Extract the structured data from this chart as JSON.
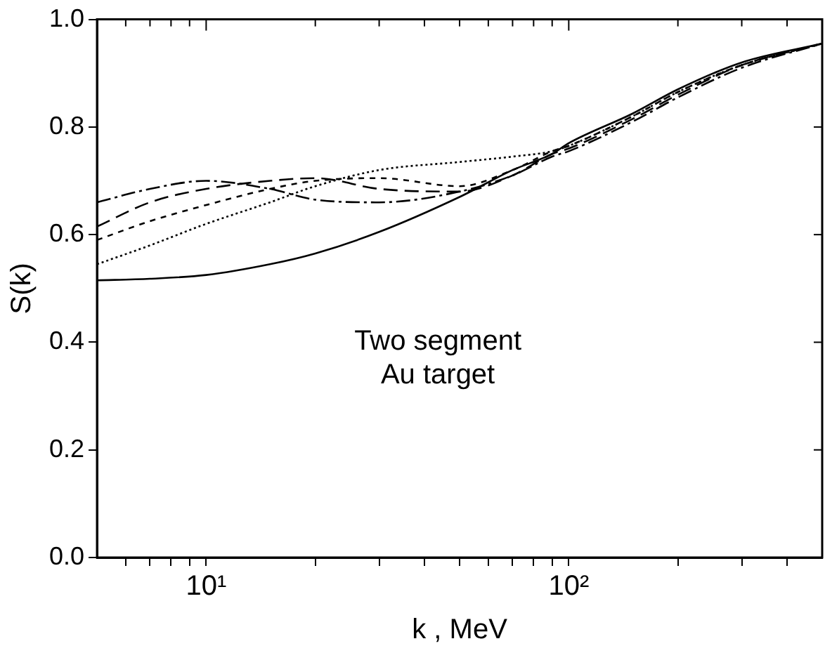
{
  "chart_data": {
    "type": "line",
    "xlabel": "k , MeV",
    "ylabel": "S(k)",
    "log": "x",
    "x": [
      5,
      7,
      10,
      15,
      20,
      30,
      50,
      70,
      90,
      100,
      150,
      200,
      300,
      500
    ],
    "series": [
      {
        "color": "#000000",
        "line_style": "solid",
        "values": [
          0.515,
          0.518,
          0.525,
          0.545,
          0.565,
          0.605,
          0.67,
          0.72,
          0.75,
          0.77,
          0.825,
          0.87,
          0.92,
          0.955
        ]
      },
      {
        "color": "#000000",
        "line_style": "dotted",
        "values": [
          0.545,
          0.58,
          0.62,
          0.66,
          0.69,
          0.72,
          0.735,
          0.745,
          0.755,
          0.765,
          0.82,
          0.865,
          0.915,
          0.955
        ]
      },
      {
        "color": "#000000",
        "line_style": "dashed",
        "values": [
          0.59,
          0.625,
          0.655,
          0.685,
          0.7,
          0.705,
          0.69,
          0.72,
          0.755,
          0.765,
          0.82,
          0.865,
          0.915,
          0.955
        ]
      },
      {
        "color": "#000000",
        "line_style": "dashed",
        "values": [
          0.615,
          0.66,
          0.685,
          0.7,
          0.705,
          0.685,
          0.68,
          0.71,
          0.75,
          0.76,
          0.815,
          0.86,
          0.915,
          0.955
        ]
      },
      {
        "color": "#000000",
        "line_style": "dashed",
        "values": [
          0.66,
          0.685,
          0.7,
          0.685,
          0.665,
          0.66,
          0.68,
          0.71,
          0.745,
          0.755,
          0.81,
          0.855,
          0.91,
          0.955
        ]
      }
    ],
    "xlim": [
      5,
      500
    ],
    "xticks": [
      {
        "value": 6,
        "label": null
      },
      {
        "value": 7,
        "label": null
      },
      {
        "value": 8,
        "label": null
      },
      {
        "value": 9,
        "label": null
      },
      {
        "value": 10,
        "label": "10¹"
      },
      {
        "value": 20,
        "label": null
      },
      {
        "value": 30,
        "label": null
      },
      {
        "value": 40,
        "label": null
      },
      {
        "value": 50,
        "label": null
      },
      {
        "value": 60,
        "label": null
      },
      {
        "value": 70,
        "label": null
      },
      {
        "value": 80,
        "label": null
      },
      {
        "value": 90,
        "label": null
      },
      {
        "value": 100,
        "label": "10²"
      },
      {
        "value": 200,
        "label": null
      },
      {
        "value": 300,
        "label": null
      },
      {
        "value": 400,
        "label": null
      }
    ],
    "ylim": [
      0,
      1
    ],
    "yticks": [
      {
        "value": 0,
        "label": "0.0"
      },
      {
        "value": 0.2,
        "label": "0.2"
      },
      {
        "value": 0.4,
        "label": "0.4"
      },
      {
        "value": 0.6,
        "label": "0.6"
      },
      {
        "value": 0.8,
        "label": "0.8"
      },
      {
        "value": 1,
        "label": "1.0"
      }
    ],
    "annotations": [
      "Two segment\nAu target"
    ],
    "grid": false,
    "legend": false,
    "marker": "none"
  }
}
